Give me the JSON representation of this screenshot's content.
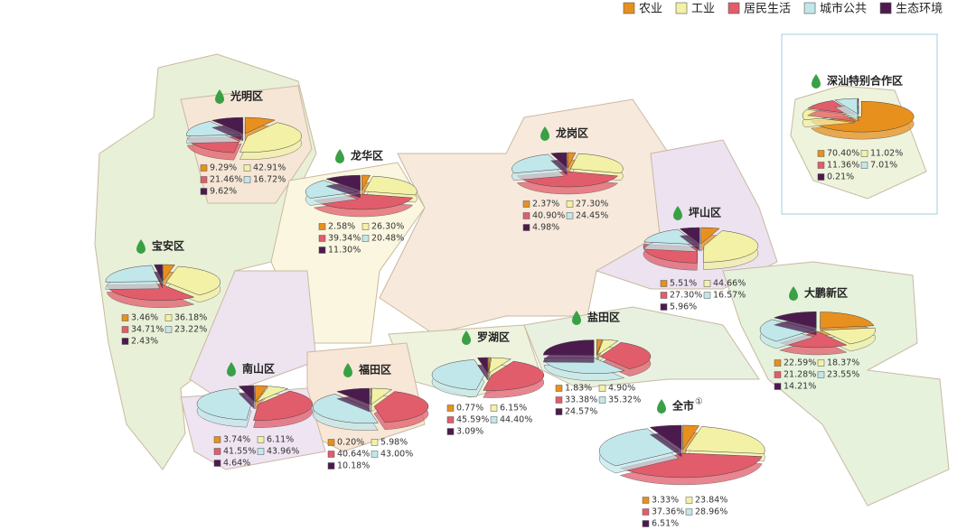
{
  "legend": {
    "categories": [
      "农业",
      "工业",
      "居民生活",
      "城市公共",
      "生态环境"
    ],
    "colors": [
      "#e8901e",
      "#f3f1a6",
      "#e25d6b",
      "#c2e7ea",
      "#4c1b4e"
    ]
  },
  "chart_data": [
    {
      "type": "pie",
      "title": "光明区",
      "values": [
        9.29,
        42.91,
        21.46,
        16.72,
        9.62
      ],
      "value_labels": [
        "9.29%",
        "42.91%",
        "21.46%",
        "16.72%",
        "9.62%"
      ]
    },
    {
      "type": "pie",
      "title": "龙华区",
      "values": [
        2.58,
        26.3,
        39.34,
        20.48,
        11.3
      ],
      "value_labels": [
        "2.58%",
        "26.30%",
        "39.34%",
        "20.48%",
        "11.30%"
      ]
    },
    {
      "type": "pie",
      "title": "龙岗区",
      "values": [
        2.37,
        27.3,
        40.9,
        24.45,
        4.98
      ],
      "value_labels": [
        "2.37%",
        "27.30%",
        "40.90%",
        "24.45%",
        "4.98%"
      ]
    },
    {
      "type": "pie",
      "title": "坪山区",
      "values": [
        5.51,
        44.66,
        27.3,
        16.57,
        5.96
      ],
      "value_labels": [
        "5.51%",
        "44.66%",
        "27.30%",
        "16.57%",
        "5.96%"
      ]
    },
    {
      "type": "pie",
      "title": "宝安区",
      "values": [
        3.46,
        36.18,
        34.71,
        23.22,
        2.43
      ],
      "value_labels": [
        "3.46%",
        "36.18%",
        "34.71%",
        "23.22%",
        "2.43%"
      ]
    },
    {
      "type": "pie",
      "title": "大鹏新区",
      "values": [
        22.59,
        18.37,
        21.28,
        23.55,
        14.21
      ],
      "value_labels": [
        "22.59%",
        "18.37%",
        "21.28%",
        "23.55%",
        "14.21%"
      ]
    },
    {
      "type": "pie",
      "title": "盐田区",
      "values": [
        1.83,
        4.9,
        33.38,
        35.32,
        24.57
      ],
      "value_labels": [
        "1.83%",
        "4.90%",
        "33.38%",
        "35.32%",
        "24.57%"
      ]
    },
    {
      "type": "pie",
      "title": "罗湖区",
      "values": [
        0.77,
        6.15,
        45.59,
        44.4,
        3.09
      ],
      "value_labels": [
        "0.77%",
        "6.15%",
        "45.59%",
        "44.40%",
        "3.09%"
      ]
    },
    {
      "type": "pie",
      "title": "南山区",
      "values": [
        3.74,
        6.11,
        41.55,
        43.96,
        4.64
      ],
      "value_labels": [
        "3.74%",
        "6.11%",
        "41.55%",
        "43.96%",
        "4.64%"
      ]
    },
    {
      "type": "pie",
      "title": "福田区",
      "values": [
        0.2,
        5.98,
        40.64,
        43.0,
        10.18
      ],
      "value_labels": [
        "0.20%",
        "5.98%",
        "40.64%",
        "43.00%",
        "10.18%"
      ]
    },
    {
      "type": "pie",
      "title": "全市",
      "title_note": "①",
      "values": [
        3.33,
        23.84,
        37.36,
        28.96,
        6.51
      ],
      "value_labels": [
        "3.33%",
        "23.84%",
        "37.36%",
        "28.96%",
        "6.51%"
      ]
    },
    {
      "type": "pie",
      "title": "深汕特别合作区",
      "values": [
        70.4,
        11.02,
        11.36,
        7.01,
        0.21
      ],
      "value_labels": [
        "70.40%",
        "11.02%",
        "11.36%",
        "7.01%",
        "0.21%"
      ]
    }
  ]
}
